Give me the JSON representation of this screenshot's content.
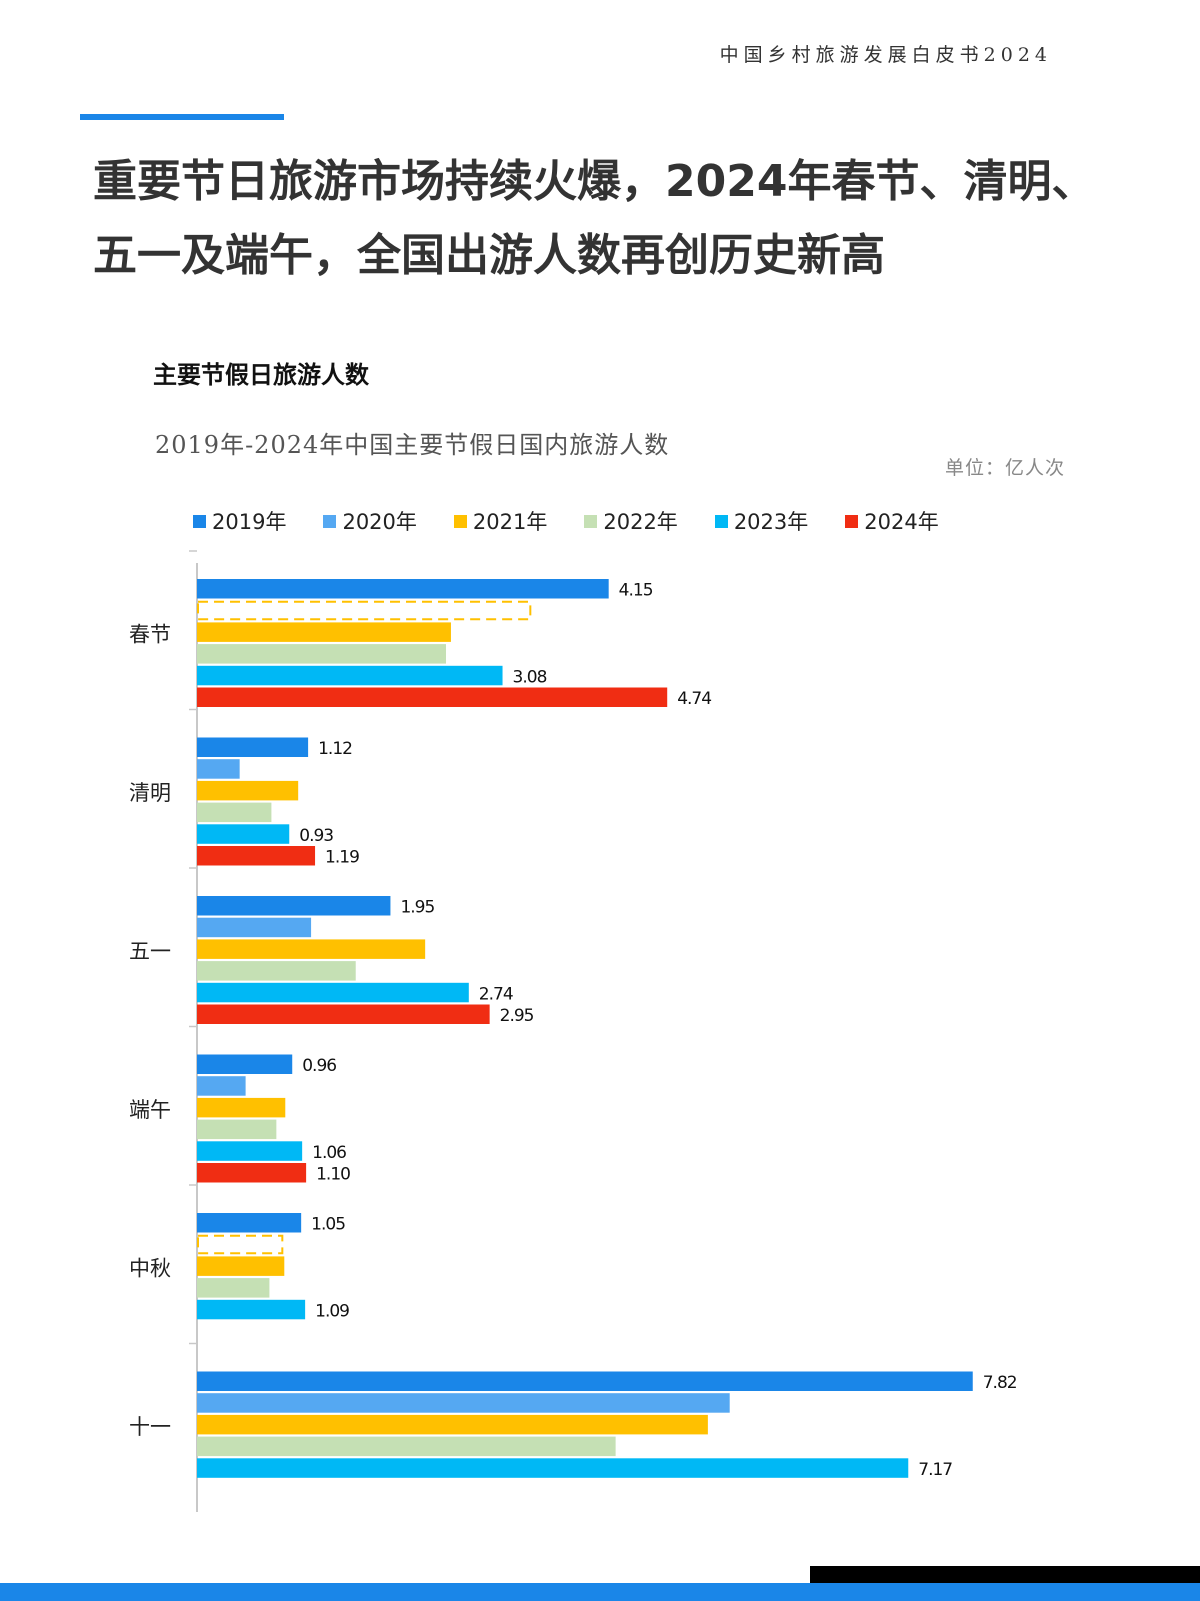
{
  "header": {
    "doc_title": "中国乡村旅游发展白皮书2024"
  },
  "page": {
    "title": "重要节日旅游市场持续火爆，2024年春节、清明、五一及端午，全国出游人数再创历史新高",
    "section_title": "主要节假日旅游人数"
  },
  "colors": {
    "accent": "#1a86e8",
    "series": [
      "#1a86e8",
      "#55a8f2",
      "#ffc000",
      "#c5e0b4",
      "#00b8f5",
      "#f02d13"
    ],
    "placeholder_outline": "#ffc000"
  },
  "chart_data": {
    "type": "bar",
    "orientation": "horizontal",
    "title": "2019年-2024年中国主要节假日国内旅游人数",
    "unit": "单位：亿人次",
    "categories": [
      "春节",
      "清明",
      "五一",
      "端午",
      "中秋",
      "十一"
    ],
    "legend_position": "top",
    "grid": false,
    "xlim": [
      0,
      8
    ],
    "series": [
      {
        "name": "2019年",
        "values": [
          4.15,
          1.12,
          1.95,
          0.96,
          1.05,
          7.82
        ],
        "labels": [
          "4.15",
          "1.12",
          "1.95",
          "0.96",
          "1.05",
          "7.82"
        ]
      },
      {
        "name": "2020年",
        "values": [
          null,
          0.43,
          1.15,
          0.49,
          null,
          5.37
        ],
        "labels": [
          null,
          null,
          null,
          null,
          null,
          null
        ]
      },
      {
        "name": "2021年",
        "values": [
          2.56,
          1.02,
          2.3,
          0.89,
          0.88,
          5.15
        ],
        "labels": [
          null,
          null,
          null,
          null,
          null,
          null
        ]
      },
      {
        "name": "2022年",
        "values": [
          2.51,
          0.75,
          1.6,
          0.8,
          0.73,
          4.22
        ],
        "labels": [
          null,
          null,
          null,
          null,
          null,
          null
        ]
      },
      {
        "name": "2023年",
        "values": [
          3.08,
          0.93,
          2.74,
          1.06,
          1.09,
          7.17
        ],
        "labels": [
          "3.08",
          "0.93",
          "2.74",
          "1.06",
          "1.09",
          "7.17"
        ]
      },
      {
        "name": "2024年",
        "values": [
          4.74,
          1.19,
          2.95,
          1.1,
          null,
          null
        ],
        "labels": [
          "4.74",
          "1.19",
          "2.95",
          "1.10",
          null,
          null
        ]
      }
    ],
    "placeholders": [
      {
        "category": "春节",
        "series": "2020年",
        "value": 3.35
      },
      {
        "category": "中秋",
        "series": "2020年",
        "value": 0.85
      }
    ]
  }
}
